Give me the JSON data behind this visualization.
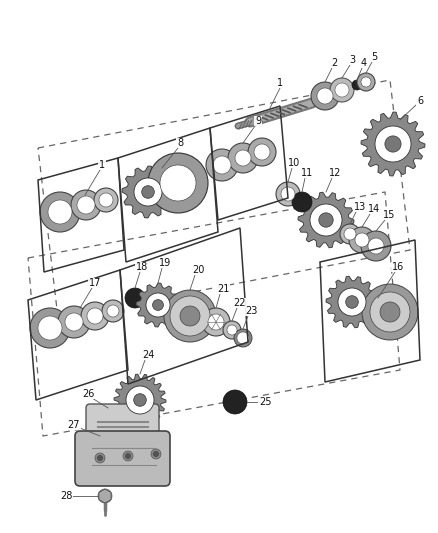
{
  "bg_color": "#ffffff",
  "fig_width": 4.38,
  "fig_height": 5.33,
  "dpi": 100,
  "line_color": "#333333",
  "dash_color": "#666666",
  "gray_dark": "#555555",
  "gray_mid": "#888888",
  "gray_light": "#bbbbbb",
  "black": "#111111",
  "white": "#ffffff"
}
